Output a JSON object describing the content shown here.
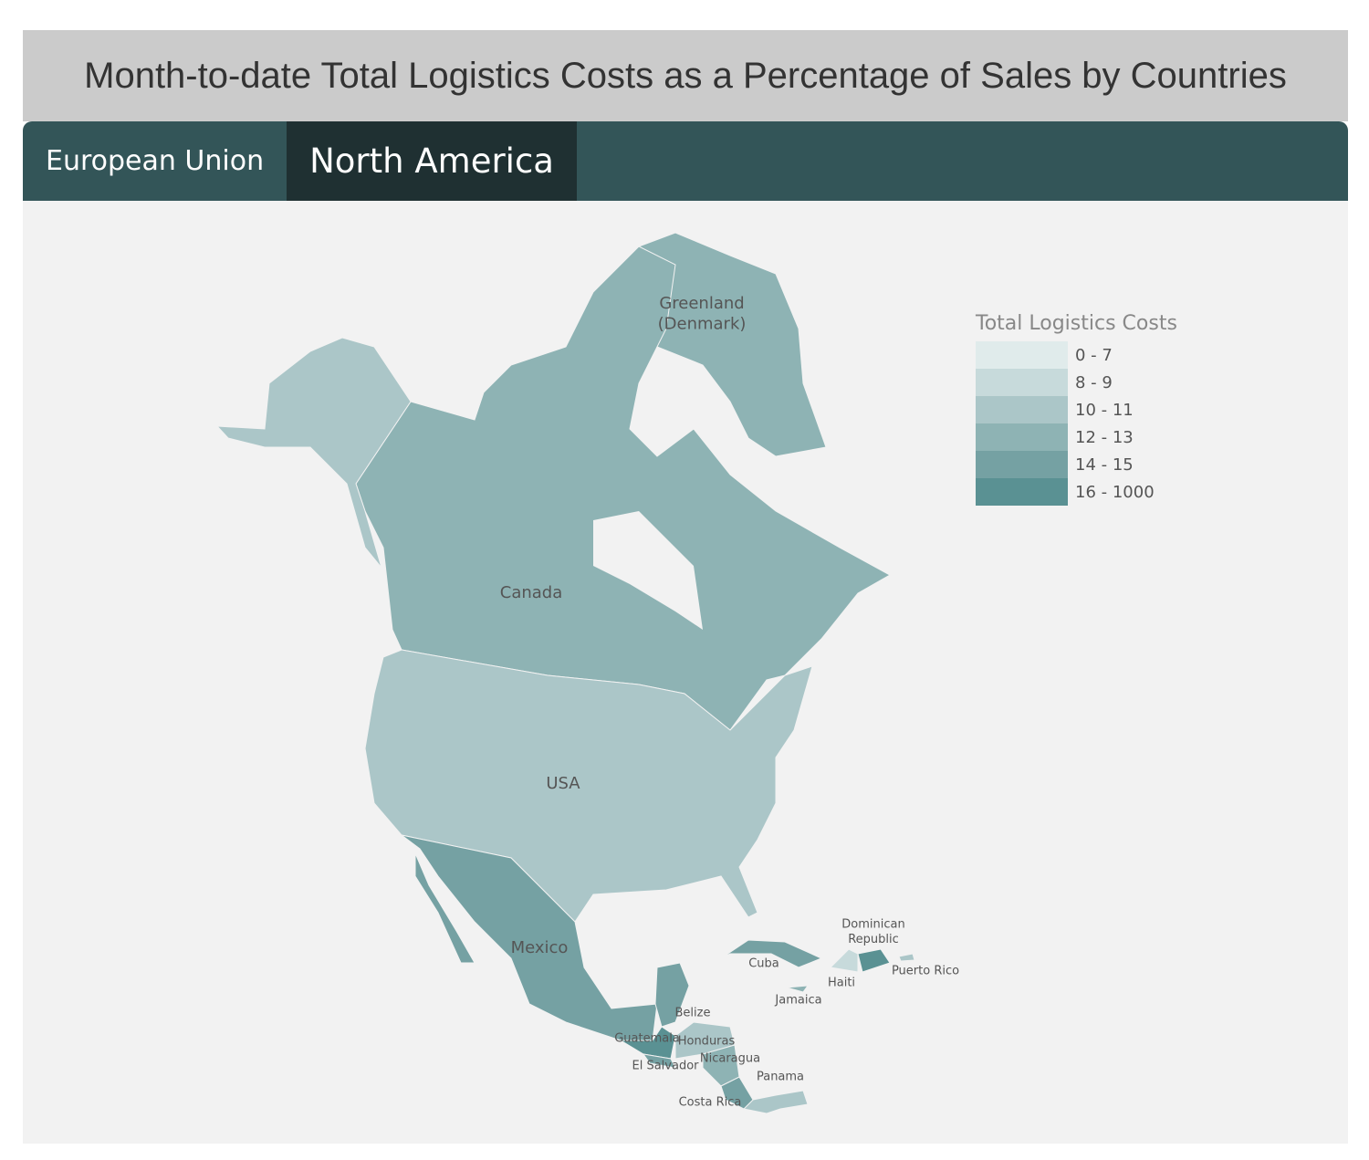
{
  "header": {
    "title": "Month-to-date Total Logistics Costs as a Percentage of Sales by Countries"
  },
  "tabs": {
    "items": [
      "European Union",
      "North America"
    ],
    "active": 1
  },
  "legend": {
    "title": "Total Logistics Costs",
    "items": [
      {
        "label": "0 - 7",
        "color": "#e0ebeb"
      },
      {
        "label": "8 - 9",
        "color": "#c7dadb"
      },
      {
        "label": "10 - 11",
        "color": "#abc6c8"
      },
      {
        "label": "12 - 13",
        "color": "#8eb3b4"
      },
      {
        "label": "14 - 15",
        "color": "#75a1a3"
      },
      {
        "label": "16 - 1000",
        "color": "#5a9193"
      }
    ]
  },
  "countries": [
    {
      "name": [
        "Greenland",
        "(Denmark)"
      ],
      "color": "#8eb3b4"
    },
    {
      "name": [
        "Canada"
      ],
      "color": "#8eb3b4"
    },
    {
      "name": [
        "USA"
      ],
      "color": "#abc6c8"
    },
    {
      "name": [
        "Mexico"
      ],
      "color": "#75a1a3"
    },
    {
      "name": [
        "Cuba"
      ],
      "color": "#75a1a3"
    },
    {
      "name": [
        "Dominican",
        "Republic"
      ],
      "color": "#5a9193"
    },
    {
      "name": [
        "Haiti"
      ],
      "color": "#c7dadb"
    },
    {
      "name": [
        "Puerto Rico"
      ],
      "color": "#abc6c8"
    },
    {
      "name": [
        "Jamaica"
      ],
      "color": "#8eb3b4"
    },
    {
      "name": [
        "Belize"
      ],
      "color": "#75a1a3"
    },
    {
      "name": [
        "Guatemala"
      ],
      "color": "#5a9193"
    },
    {
      "name": [
        "Honduras"
      ],
      "color": "#abc6c8"
    },
    {
      "name": [
        "El Salvador"
      ],
      "color": "#75a1a3"
    },
    {
      "name": [
        "Nicaragua"
      ],
      "color": "#8eb3b4"
    },
    {
      "name": [
        "Panama"
      ],
      "color": "#abc6c8"
    },
    {
      "name": [
        "Costa Rica"
      ],
      "color": "#75a1a3"
    }
  ]
}
